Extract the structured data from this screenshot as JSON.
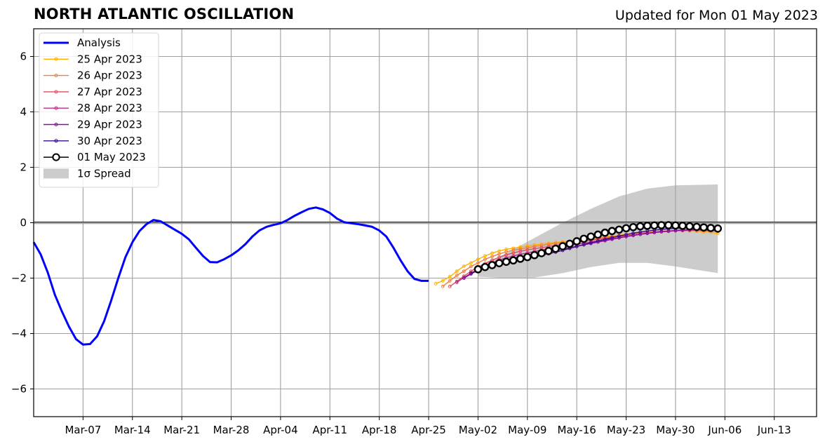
{
  "chart_data": {
    "type": "line",
    "title": "NORTH ATLANTIC OSCILLATION",
    "subtitle": "Updated for Mon 01 May 2023",
    "ylim": [
      -7,
      7
    ],
    "yticks": [
      -6,
      -4,
      -2,
      0,
      2,
      4,
      6
    ],
    "ytick_labels": [
      "−6",
      "−4",
      "−2",
      "0",
      "2",
      "4",
      "6"
    ],
    "xlim": [
      "2023-02-28",
      "2023-06-19"
    ],
    "xticks": [
      {
        "date": "2023-03-07",
        "label": "Mar-07"
      },
      {
        "date": "2023-03-14",
        "label": "Mar-14"
      },
      {
        "date": "2023-03-21",
        "label": "Mar-21"
      },
      {
        "date": "2023-03-28",
        "label": "Mar-28"
      },
      {
        "date": "2023-04-04",
        "label": "Apr-04"
      },
      {
        "date": "2023-04-11",
        "label": "Apr-11"
      },
      {
        "date": "2023-04-18",
        "label": "Apr-18"
      },
      {
        "date": "2023-04-25",
        "label": "Apr-25"
      },
      {
        "date": "2023-05-02",
        "label": "May-02"
      },
      {
        "date": "2023-05-09",
        "label": "May-09"
      },
      {
        "date": "2023-05-16",
        "label": "May-16"
      },
      {
        "date": "2023-05-23",
        "label": "May-23"
      },
      {
        "date": "2023-05-30",
        "label": "May-30"
      },
      {
        "date": "2023-06-06",
        "label": "Jun-06"
      },
      {
        "date": "2023-06-13",
        "label": "Jun-13"
      }
    ],
    "grid": true,
    "legend_position": "top-left",
    "analysis": {
      "name": "Analysis",
      "color": "#0000ff",
      "start": "2023-02-28",
      "values": [
        -0.7,
        -1.15,
        -1.8,
        -2.6,
        -3.2,
        -3.75,
        -4.2,
        -4.4,
        -4.38,
        -4.1,
        -3.55,
        -2.8,
        -2.0,
        -1.25,
        -0.7,
        -0.3,
        -0.05,
        0.1,
        0.05,
        -0.1,
        -0.25,
        -0.4,
        -0.6,
        -0.9,
        -1.2,
        -1.42,
        -1.43,
        -1.32,
        -1.18,
        -1.0,
        -0.78,
        -0.5,
        -0.28,
        -0.15,
        -0.08,
        -0.02,
        0.1,
        0.25,
        0.38,
        0.5,
        0.55,
        0.48,
        0.35,
        0.15,
        0.02,
        -0.02,
        -0.05,
        -0.1,
        -0.15,
        -0.28,
        -0.5,
        -0.9,
        -1.35,
        -1.75,
        -2.03,
        -2.1,
        -2.1
      ]
    },
    "forecasts": [
      {
        "name": "25 Apr 2023",
        "color": "#ffb000",
        "start": "2023-04-26",
        "values": [
          -2.2,
          -2.1,
          -1.95,
          -1.75,
          -1.57,
          -1.45,
          -1.32,
          -1.2,
          -1.1,
          -1.02,
          -0.96,
          -0.92,
          -0.88,
          -0.84,
          -0.8,
          -0.77,
          -0.74,
          -0.71,
          -0.69,
          -0.66,
          -0.63,
          -0.6,
          -0.57,
          -0.54,
          -0.51,
          -0.48,
          -0.45,
          -0.42,
          -0.4,
          -0.37,
          -0.35,
          -0.33,
          -0.31,
          -0.3,
          -0.29,
          -0.29,
          -0.3,
          -0.31,
          -0.33,
          -0.35,
          -0.38
        ]
      },
      {
        "name": "26 Apr 2023",
        "color": "#f07f3c",
        "start": "2023-04-27",
        "values": [
          -2.3,
          -2.1,
          -1.9,
          -1.75,
          -1.58,
          -1.45,
          -1.32,
          -1.22,
          -1.13,
          -1.05,
          -0.99,
          -0.95,
          -0.9,
          -0.86,
          -0.82,
          -0.78,
          -0.75,
          -0.72,
          -0.69,
          -0.66,
          -0.63,
          -0.6,
          -0.56,
          -0.53,
          -0.5,
          -0.47,
          -0.44,
          -0.41,
          -0.38,
          -0.36,
          -0.34,
          -0.32,
          -0.3,
          -0.29,
          -0.28,
          -0.28,
          -0.28,
          -0.29,
          -0.3,
          -0.32
        ]
      },
      {
        "name": "27 Apr 2023",
        "color": "#e24c5c",
        "start": "2023-04-28",
        "values": [
          -2.3,
          -2.12,
          -1.93,
          -1.75,
          -1.6,
          -1.47,
          -1.35,
          -1.25,
          -1.16,
          -1.09,
          -1.03,
          -0.98,
          -0.94,
          -0.9,
          -0.86,
          -0.82,
          -0.78,
          -0.74,
          -0.71,
          -0.67,
          -0.64,
          -0.6,
          -0.57,
          -0.53,
          -0.5,
          -0.47,
          -0.44,
          -0.41,
          -0.38,
          -0.35,
          -0.33,
          -0.31,
          -0.29,
          -0.28,
          -0.27,
          -0.27,
          -0.27,
          -0.28,
          -0.29
        ]
      },
      {
        "name": "28 Apr 2023",
        "color": "#c22a86",
        "start": "2023-04-29",
        "values": [
          -2.15,
          -1.98,
          -1.82,
          -1.68,
          -1.56,
          -1.45,
          -1.35,
          -1.27,
          -1.2,
          -1.14,
          -1.09,
          -1.04,
          -0.99,
          -0.94,
          -0.9,
          -0.86,
          -0.82,
          -0.78,
          -0.74,
          -0.7,
          -0.66,
          -0.62,
          -0.58,
          -0.54,
          -0.5,
          -0.46,
          -0.42,
          -0.39,
          -0.36,
          -0.33,
          -0.31,
          -0.29,
          -0.28,
          -0.27,
          -0.26,
          -0.26,
          -0.27,
          -0.28
        ]
      },
      {
        "name": "29 Apr 2023",
        "color": "#8b0aa5",
        "start": "2023-04-30",
        "values": [
          -2.0,
          -1.85,
          -1.72,
          -1.6,
          -1.5,
          -1.42,
          -1.35,
          -1.29,
          -1.24,
          -1.19,
          -1.14,
          -1.1,
          -1.05,
          -1.0,
          -0.95,
          -0.9,
          -0.85,
          -0.8,
          -0.75,
          -0.7,
          -0.65,
          -0.6,
          -0.55,
          -0.5,
          -0.46,
          -0.42,
          -0.38,
          -0.35,
          -0.32,
          -0.3,
          -0.28,
          -0.26,
          -0.25,
          -0.24,
          -0.24,
          -0.25,
          -0.26
        ]
      },
      {
        "name": "30 Apr 2023",
        "color": "#3a0a8a",
        "start": "2023-05-01",
        "values": [
          -1.82,
          -1.72,
          -1.63,
          -1.56,
          -1.5,
          -1.44,
          -1.39,
          -1.34,
          -1.29,
          -1.24,
          -1.18,
          -1.12,
          -1.06,
          -1.0,
          -0.93,
          -0.86,
          -0.79,
          -0.72,
          -0.66,
          -0.6,
          -0.54,
          -0.48,
          -0.43,
          -0.38,
          -0.34,
          -0.3,
          -0.27,
          -0.24,
          -0.22,
          -0.2,
          -0.19,
          -0.18,
          -0.18,
          -0.19,
          -0.2,
          -0.22
        ]
      }
    ],
    "current": {
      "name": "01 May 2023",
      "color": "#000000",
      "start": "2023-05-02",
      "values": [
        -1.68,
        -1.6,
        -1.53,
        -1.46,
        -1.41,
        -1.36,
        -1.3,
        -1.24,
        -1.17,
        -1.1,
        -1.02,
        -0.94,
        -0.85,
        -0.76,
        -0.67,
        -0.58,
        -0.5,
        -0.43,
        -0.36,
        -0.3,
        -0.25,
        -0.2,
        -0.16,
        -0.13,
        -0.11,
        -0.1,
        -0.09,
        -0.09,
        -0.1,
        -0.11,
        -0.13,
        -0.15,
        -0.17,
        -0.19,
        -0.21
      ]
    },
    "spread": {
      "name": "1σ Spread",
      "color": "#cccccc",
      "start": "2023-05-02",
      "end": "2023-06-05",
      "upper": [
        {
          "date": "2023-05-02",
          "value": -1.6
        },
        {
          "date": "2023-05-06",
          "value": -1.1
        },
        {
          "date": "2023-05-10",
          "value": -0.55
        },
        {
          "date": "2023-05-14",
          "value": 0.0
        },
        {
          "date": "2023-05-18",
          "value": 0.5
        },
        {
          "date": "2023-05-22",
          "value": 0.95
        },
        {
          "date": "2023-05-26",
          "value": 1.23
        },
        {
          "date": "2023-05-30",
          "value": 1.35
        },
        {
          "date": "2023-06-05",
          "value": 1.38
        }
      ],
      "lower": [
        {
          "date": "2023-05-02",
          "value": -1.95
        },
        {
          "date": "2023-05-06",
          "value": -2.0
        },
        {
          "date": "2023-05-10",
          "value": -1.98
        },
        {
          "date": "2023-05-14",
          "value": -1.82
        },
        {
          "date": "2023-05-18",
          "value": -1.6
        },
        {
          "date": "2023-05-22",
          "value": -1.45
        },
        {
          "date": "2023-05-26",
          "value": -1.45
        },
        {
          "date": "2023-05-30",
          "value": -1.58
        },
        {
          "date": "2023-06-05",
          "value": -1.82
        }
      ]
    },
    "zero_line": 0
  }
}
